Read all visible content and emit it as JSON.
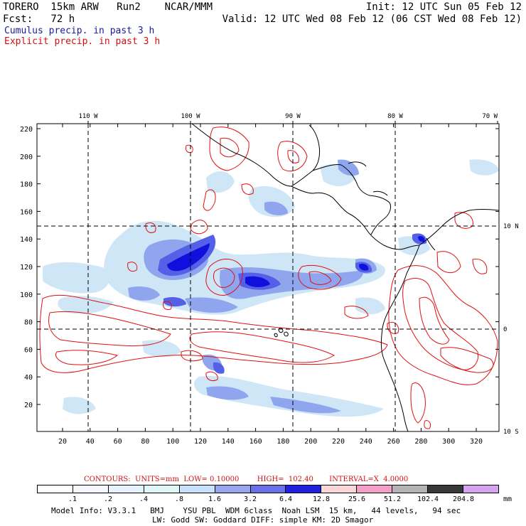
{
  "header": {
    "left_line1": "TORERO  15km ARW   Run2    NCAR/MMM",
    "left_line2": "Fcst:   72 h",
    "right_line1": "Init: 12 UTC Sun 05 Feb 12",
    "right_line2": "Valid: 12 UTC Wed 08 Feb 12 (06 CST Wed 08 Feb 12)"
  },
  "labels": {
    "cumulus": "Cumulus precip. in past 3 h",
    "explicit": "Explicit precip. in past 3 h"
  },
  "map": {
    "top_lon_labels": [
      "110 W",
      "100 W",
      "90 W",
      "80 W",
      "70 W"
    ],
    "right_lat_labels": [
      "10 N",
      "0",
      "10 S"
    ],
    "left_grid_labels": [
      "220",
      "200",
      "180",
      "160",
      "140",
      "120",
      "100",
      "80",
      "60",
      "40",
      "20"
    ],
    "bottom_grid_labels": [
      "20",
      "40",
      "60",
      "80",
      "100",
      "120",
      "140",
      "160",
      "180",
      "200",
      "220",
      "240",
      "260",
      "280",
      "300",
      "320"
    ],
    "colors": {
      "cumulus_light": "#cfe6f7",
      "cumulus_mid": "#8fa6ee",
      "cumulus_dark": "#5560e8",
      "cumulus_deep": "#1010dd",
      "explicit_contour": "#e01010",
      "coastline": "#000000"
    }
  },
  "contours": {
    "label": "CONTOURS:  UNITS=mm  LOW= 0.10000        HIGH=  102.40       INTERVAL=X  4.0000"
  },
  "legend": {
    "labels": [
      ".1",
      ".2",
      ".4",
      ".8",
      "1.6",
      "3.2",
      "6.4",
      "12.8",
      "25.6",
      "51.2",
      "102.4",
      "204.8"
    ],
    "units": "mm",
    "colors": [
      "#ffffff",
      "#f5f9ff",
      "#e6f3ff",
      "#dff7f7",
      "#c7e0fb",
      "#9aa6f0",
      "#6a70ec",
      "#2020e0",
      "#fbd6d6",
      "#f59ec8",
      "#b4b4b4",
      "#383838",
      "#d8a4f2"
    ]
  },
  "model_info": {
    "line1": "Model Info: V3.3.1   BMJ    YSU PBL  WDM 6class  Noah LSM  15 km,   44 levels,   94 sec",
    "line2": "LW: Godd SW: Goddard DIFF: simple KM: 2D Smagor"
  }
}
